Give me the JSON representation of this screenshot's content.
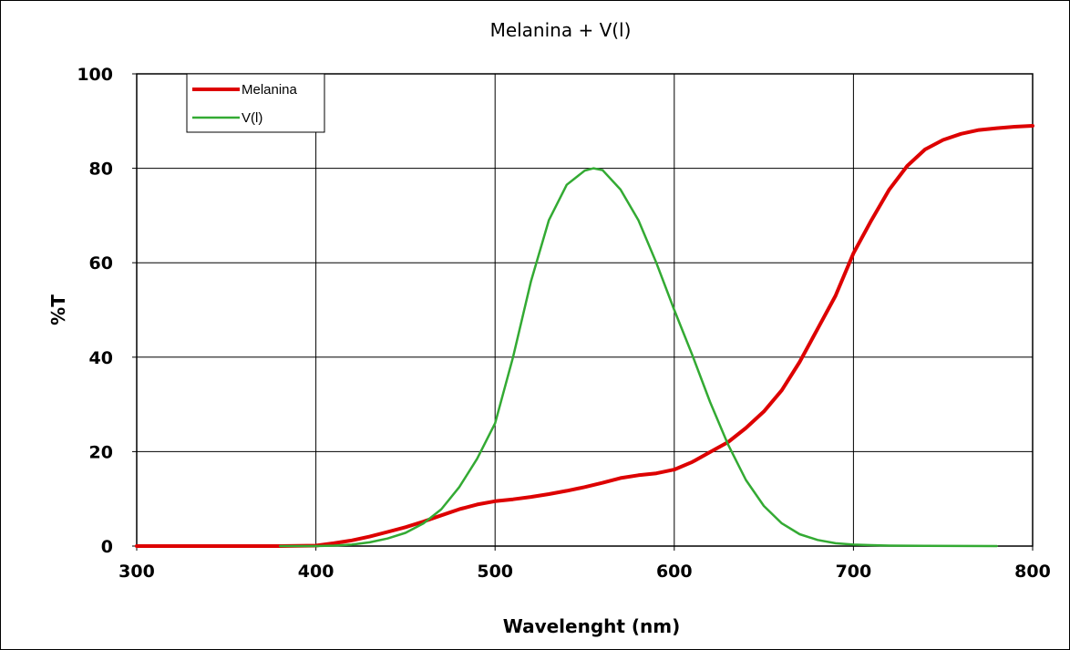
{
  "chart_data": {
    "type": "line",
    "title": "Melanina + V(l)",
    "xlabel": "Wavelenght (nm)",
    "ylabel": "%T",
    "xlim": [
      300,
      800
    ],
    "ylim": [
      0,
      100
    ],
    "xticks": [
      300,
      400,
      500,
      600,
      700,
      800
    ],
    "yticks": [
      0,
      20,
      40,
      60,
      80,
      100
    ],
    "grid": true,
    "legend_position": "top-left",
    "series": [
      {
        "name": "Melanina",
        "color": "#dd0000",
        "x": [
          300,
          380,
          400,
          410,
          420,
          430,
          440,
          450,
          460,
          470,
          480,
          490,
          500,
          510,
          520,
          530,
          540,
          550,
          560,
          570,
          580,
          590,
          600,
          610,
          620,
          630,
          640,
          650,
          660,
          670,
          680,
          690,
          700,
          710,
          720,
          730,
          740,
          750,
          760,
          770,
          780,
          790,
          800
        ],
        "y": [
          0,
          0,
          0.1,
          0.6,
          1.2,
          2.0,
          3.0,
          4.0,
          5.2,
          6.5,
          7.8,
          8.8,
          9.5,
          9.9,
          10.4,
          11.0,
          11.7,
          12.5,
          13.4,
          14.4,
          15.0,
          15.4,
          16.2,
          17.8,
          19.9,
          22.0,
          25.0,
          28.5,
          33.0,
          39.0,
          46.0,
          53.0,
          62.0,
          69.0,
          75.5,
          80.5,
          84.0,
          86.0,
          87.3,
          88.1,
          88.5,
          88.8,
          89.0
        ]
      },
      {
        "name": "V(l)",
        "color": "#33aa33",
        "x": [
          380,
          400,
          410,
          420,
          430,
          440,
          450,
          460,
          470,
          480,
          490,
          500,
          510,
          520,
          530,
          540,
          550,
          555,
          560,
          570,
          580,
          590,
          600,
          610,
          620,
          630,
          640,
          650,
          660,
          670,
          680,
          690,
          700,
          710,
          720,
          740,
          760,
          780
        ],
        "y": [
          0,
          0,
          0.1,
          0.3,
          0.8,
          1.6,
          2.8,
          4.8,
          7.8,
          12.5,
          18.5,
          26.0,
          40.0,
          56.0,
          69.0,
          76.5,
          79.5,
          80.0,
          79.6,
          75.5,
          69.0,
          60.0,
          50.0,
          40.5,
          30.5,
          21.5,
          14.0,
          8.5,
          4.8,
          2.5,
          1.3,
          0.6,
          0.3,
          0.2,
          0.1,
          0.05,
          0.02,
          0
        ]
      }
    ]
  }
}
